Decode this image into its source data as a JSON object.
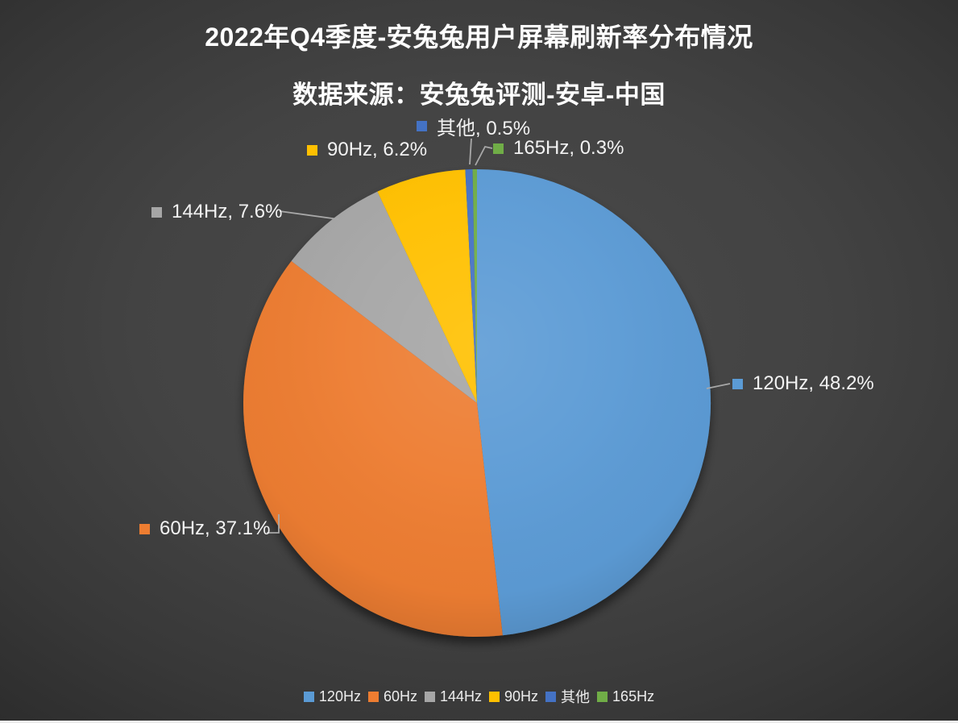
{
  "chart_data": {
    "type": "pie",
    "title": "2022年Q4季度-安兔兔用户屏幕刷新率分布情况",
    "subtitle": "数据来源：安兔兔评测-安卓-中国",
    "unit": "%",
    "start_angle_deg": 0,
    "direction": "clockwise",
    "legend_position": "bottom",
    "data_label_format": "{label}, {value}%",
    "slices": [
      {
        "label": "120Hz",
        "value": 48.2,
        "color": "#5B9BD5"
      },
      {
        "label": "60Hz",
        "value": 37.1,
        "color": "#ED7D31"
      },
      {
        "label": "144Hz",
        "value": 7.6,
        "color": "#A6A6A6"
      },
      {
        "label": "90Hz",
        "value": 6.2,
        "color": "#FFC000"
      },
      {
        "label": "其他",
        "value": 0.5,
        "color": "#4472C4"
      },
      {
        "label": "165Hz",
        "value": 0.3,
        "color": "#70AD47"
      }
    ]
  },
  "colors": {
    "background_center": "#4a4a4a",
    "background_edge": "#222222",
    "title_text": "#ffffff",
    "label_text": "#f2f2f2",
    "leader_line": "#a8a8a8",
    "bottom_border": "#ececec"
  }
}
